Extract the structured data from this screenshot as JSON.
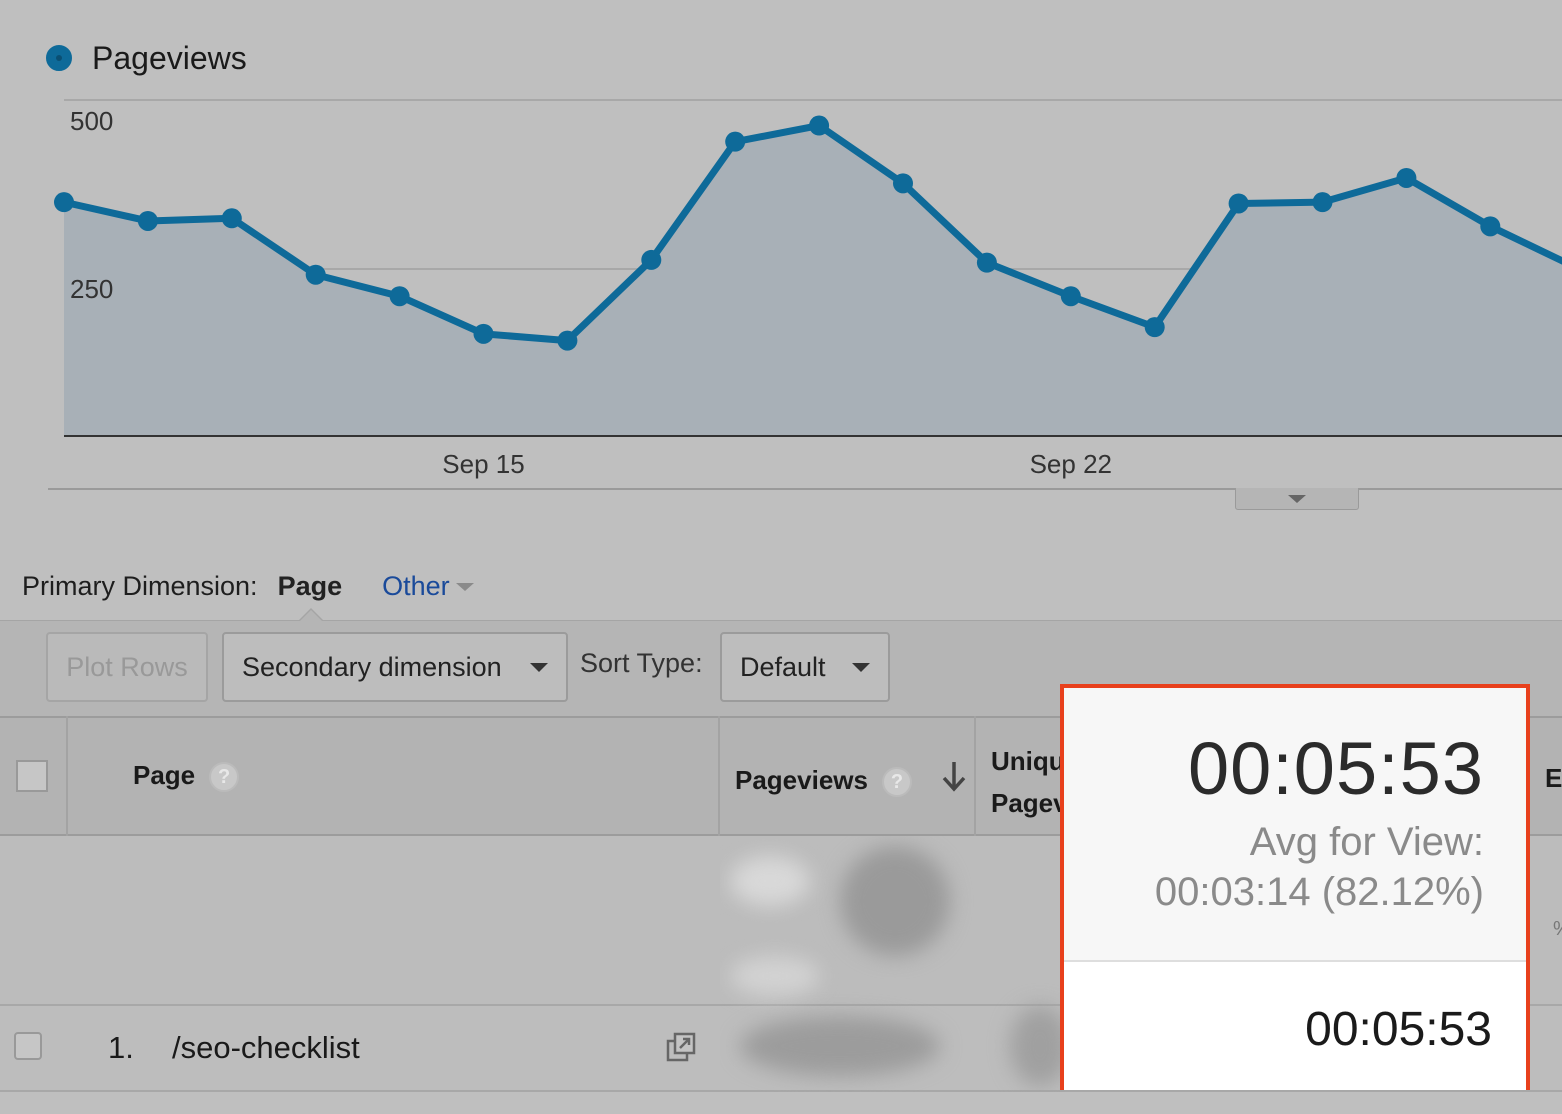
{
  "chart": {
    "legend_label": "Pageviews",
    "accent_color": "#0e6a99",
    "fill_color": "#a8b0b7"
  },
  "chart_data": {
    "type": "area",
    "series": [
      {
        "name": "Pageviews",
        "values": [
          348,
          320,
          324,
          240,
          208,
          152,
          142,
          262,
          438,
          462,
          376,
          258,
          208,
          162,
          346,
          348,
          384,
          312,
          252
        ]
      }
    ],
    "x_tick_labels": [
      "Sep 15",
      "Sep 22"
    ],
    "x_tick_indices": [
      5,
      12
    ],
    "y_ticks": [
      250,
      500
    ],
    "ylim": [
      0,
      500
    ],
    "grid": true
  },
  "primary_dimension": {
    "label": "Primary Dimension:",
    "selected": "Page",
    "other": "Other"
  },
  "toolbar": {
    "plot_rows": "Plot Rows",
    "secondary_dimension": "Secondary dimension",
    "sort_type_label": "Sort Type:",
    "sort_default": "Default"
  },
  "table": {
    "headers": {
      "page": "Page",
      "pageviews": "Pageviews",
      "unique_line1": "Uniqu",
      "unique_line2": "Pagev",
      "clipped": "E"
    },
    "help_icon_glyph": "?",
    "rows": [
      {
        "index": "1.",
        "page": "/seo-checklist"
      }
    ],
    "clipped_symbol": "%"
  },
  "highlight": {
    "value": "00:05:53",
    "avg_label": "Avg for View:",
    "avg_value": "00:03:14 (82.12%)",
    "row_value": "00:05:53",
    "border_color": "#e8401c"
  }
}
